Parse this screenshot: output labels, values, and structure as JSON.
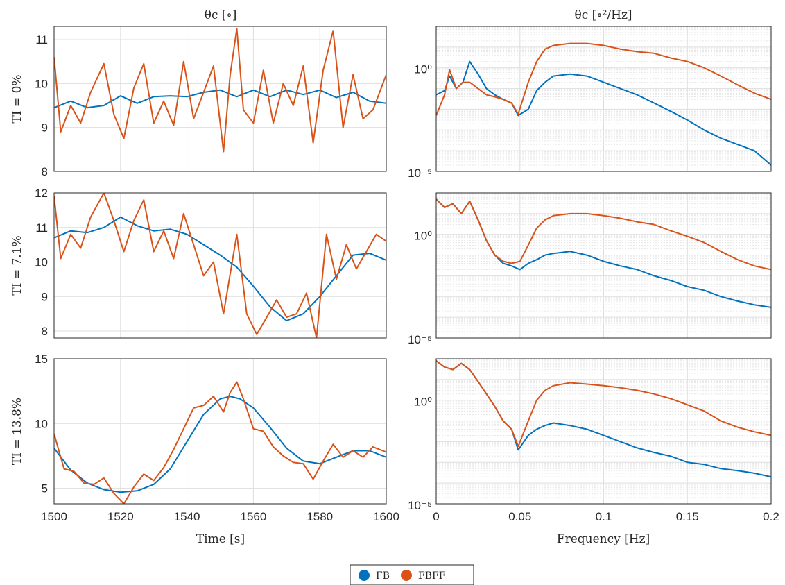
{
  "legend": {
    "entries": [
      {
        "label": "FB",
        "color": "#0072BD"
      },
      {
        "label": "FBFF",
        "color": "#D95319"
      }
    ]
  },
  "columns": {
    "left_title": "θc [∘]",
    "right_title": "θc [∘²/Hz]",
    "left_xlabel": "Time [s]",
    "right_xlabel": "Frequency [Hz]"
  },
  "chart_data": [
    {
      "type": "line",
      "ylabel": "TI = 0%",
      "xlim": [
        1500,
        1600
      ],
      "ylim": [
        8,
        11.3
      ],
      "xticks": [
        1500,
        1520,
        1540,
        1560,
        1580,
        1600
      ],
      "yticks": [
        8,
        9,
        10,
        11
      ],
      "series": [
        {
          "name": "FB",
          "color": "#0072BD",
          "x": [
            1500,
            1505,
            1510,
            1515,
            1520,
            1525,
            1530,
            1535,
            1540,
            1545,
            1550,
            1555,
            1560,
            1565,
            1570,
            1575,
            1580,
            1585,
            1590,
            1595,
            1600
          ],
          "y": [
            9.45,
            9.6,
            9.45,
            9.5,
            9.72,
            9.55,
            9.7,
            9.72,
            9.7,
            9.8,
            9.85,
            9.7,
            9.85,
            9.7,
            9.85,
            9.75,
            9.85,
            9.68,
            9.8,
            9.6,
            9.55
          ]
        },
        {
          "name": "FBFF",
          "color": "#D95319",
          "x": [
            1500,
            1502,
            1505,
            1508,
            1511,
            1515,
            1518,
            1521,
            1524,
            1527,
            1530,
            1533,
            1536,
            1539,
            1542,
            1545,
            1548,
            1551,
            1553,
            1555,
            1557,
            1560,
            1563,
            1566,
            1569,
            1572,
            1575,
            1578,
            1581,
            1584,
            1587,
            1590,
            1593,
            1596,
            1600
          ],
          "y": [
            10.6,
            8.9,
            9.5,
            9.1,
            9.8,
            10.45,
            9.3,
            8.75,
            9.9,
            10.45,
            9.1,
            9.6,
            9.05,
            10.5,
            9.2,
            9.8,
            10.4,
            8.45,
            10.2,
            11.25,
            9.4,
            9.1,
            10.3,
            9.1,
            10.0,
            9.5,
            10.4,
            8.65,
            10.3,
            11.2,
            9.0,
            10.2,
            9.2,
            9.4,
            10.2
          ]
        }
      ]
    },
    {
      "type": "line",
      "xlim": [
        0,
        0.2
      ],
      "yscale": "log",
      "ylim": [
        1e-05,
        100
      ],
      "xticks": [
        0,
        0.05,
        0.1,
        0.15,
        0.2
      ],
      "ytick_labels": [
        "10⁰",
        "10⁻⁵"
      ],
      "series": [
        {
          "name": "FB",
          "color": "#0072BD",
          "x": [
            0,
            0.005,
            0.008,
            0.012,
            0.016,
            0.02,
            0.025,
            0.03,
            0.035,
            0.04,
            0.045,
            0.049,
            0.055,
            0.06,
            0.065,
            0.07,
            0.08,
            0.09,
            0.1,
            0.11,
            0.12,
            0.13,
            0.14,
            0.15,
            0.16,
            0.17,
            0.18,
            0.19,
            0.2
          ],
          "y": [
            0.05,
            0.08,
            0.4,
            0.1,
            0.2,
            2.0,
            0.5,
            0.1,
            0.05,
            0.03,
            0.02,
            0.005,
            0.01,
            0.08,
            0.2,
            0.4,
            0.5,
            0.4,
            0.2,
            0.1,
            0.05,
            0.02,
            0.008,
            0.003,
            0.001,
            0.0004,
            0.0002,
            0.0001,
            2e-05
          ]
        },
        {
          "name": "FBFF",
          "color": "#D95319",
          "x": [
            0,
            0.005,
            0.008,
            0.012,
            0.016,
            0.02,
            0.025,
            0.03,
            0.035,
            0.04,
            0.045,
            0.049,
            0.055,
            0.06,
            0.065,
            0.07,
            0.08,
            0.09,
            0.1,
            0.11,
            0.12,
            0.13,
            0.14,
            0.15,
            0.16,
            0.17,
            0.18,
            0.19,
            0.2
          ],
          "y": [
            0.005,
            0.05,
            0.8,
            0.1,
            0.2,
            0.2,
            0.1,
            0.05,
            0.04,
            0.03,
            0.02,
            0.006,
            0.2,
            2.0,
            8.0,
            12.0,
            15.0,
            15.0,
            12.0,
            8.0,
            6.0,
            5.0,
            3.0,
            2.0,
            1.0,
            0.4,
            0.15,
            0.06,
            0.03
          ]
        }
      ]
    },
    {
      "type": "line",
      "ylabel": "TI = 7.1%",
      "xlim": [
        1500,
        1600
      ],
      "ylim": [
        7.8,
        12
      ],
      "xticks": [
        1500,
        1520,
        1540,
        1560,
        1580,
        1600
      ],
      "yticks": [
        8,
        9,
        10,
        11,
        12
      ],
      "series": [
        {
          "name": "FB",
          "color": "#0072BD",
          "x": [
            1500,
            1505,
            1510,
            1515,
            1520,
            1525,
            1530,
            1535,
            1540,
            1545,
            1550,
            1555,
            1560,
            1565,
            1570,
            1575,
            1580,
            1585,
            1590,
            1595,
            1600
          ],
          "y": [
            10.7,
            10.9,
            10.85,
            11.0,
            11.3,
            11.05,
            10.9,
            10.95,
            10.8,
            10.5,
            10.2,
            9.85,
            9.3,
            8.7,
            8.3,
            8.5,
            9.0,
            9.6,
            10.2,
            10.25,
            10.05
          ]
        },
        {
          "name": "FBFF",
          "color": "#D95319",
          "x": [
            1500,
            1502,
            1505,
            1508,
            1511,
            1515,
            1518,
            1521,
            1524,
            1527,
            1530,
            1533,
            1536,
            1539,
            1542,
            1545,
            1548,
            1551,
            1555,
            1558,
            1561,
            1564,
            1567,
            1570,
            1573,
            1576,
            1579,
            1582,
            1585,
            1588,
            1591,
            1594,
            1597,
            1600
          ],
          "y": [
            11.9,
            10.1,
            10.8,
            10.4,
            11.3,
            12.0,
            11.2,
            10.3,
            11.2,
            11.8,
            10.3,
            10.9,
            10.1,
            11.4,
            10.5,
            9.6,
            10.0,
            8.5,
            10.8,
            8.5,
            7.9,
            8.4,
            8.9,
            8.4,
            8.5,
            9.1,
            7.8,
            10.8,
            9.5,
            10.5,
            9.8,
            10.3,
            10.8,
            10.6
          ]
        }
      ]
    },
    {
      "type": "line",
      "xlim": [
        0,
        0.2
      ],
      "yscale": "log",
      "ylim": [
        1e-05,
        100
      ],
      "xticks": [
        0,
        0.05,
        0.1,
        0.15,
        0.2
      ],
      "ytick_labels": [
        "10⁰",
        "10⁻⁵"
      ],
      "series": [
        {
          "name": "FB",
          "color": "#0072BD",
          "x": [
            0,
            0.005,
            0.01,
            0.015,
            0.02,
            0.025,
            0.03,
            0.035,
            0.04,
            0.045,
            0.05,
            0.055,
            0.06,
            0.065,
            0.07,
            0.08,
            0.09,
            0.1,
            0.11,
            0.12,
            0.13,
            0.14,
            0.15,
            0.16,
            0.17,
            0.18,
            0.19,
            0.2
          ],
          "y": [
            50,
            20,
            30,
            10,
            40,
            5,
            0.5,
            0.1,
            0.04,
            0.03,
            0.02,
            0.04,
            0.06,
            0.1,
            0.12,
            0.15,
            0.1,
            0.05,
            0.03,
            0.02,
            0.01,
            0.006,
            0.003,
            0.002,
            0.001,
            0.0006,
            0.0004,
            0.0003
          ]
        },
        {
          "name": "FBFF",
          "color": "#D95319",
          "x": [
            0,
            0.005,
            0.01,
            0.015,
            0.02,
            0.025,
            0.03,
            0.035,
            0.04,
            0.045,
            0.05,
            0.055,
            0.06,
            0.065,
            0.07,
            0.08,
            0.09,
            0.1,
            0.11,
            0.12,
            0.13,
            0.14,
            0.15,
            0.16,
            0.17,
            0.18,
            0.19,
            0.2
          ],
          "y": [
            50,
            20,
            30,
            10,
            40,
            5,
            0.5,
            0.1,
            0.05,
            0.04,
            0.05,
            0.3,
            2.0,
            5.0,
            8.0,
            10.0,
            10.0,
            8.0,
            6.0,
            4.0,
            3.0,
            1.5,
            0.8,
            0.4,
            0.15,
            0.06,
            0.03,
            0.02
          ]
        }
      ]
    },
    {
      "type": "line",
      "ylabel": "TI = 13.8%",
      "xlim": [
        1500,
        1600
      ],
      "ylim": [
        3.8,
        15
      ],
      "xticks": [
        1500,
        1520,
        1540,
        1560,
        1580,
        1600
      ],
      "yticks": [
        5,
        10,
        15
      ],
      "series": [
        {
          "name": "FB",
          "color": "#0072BD",
          "x": [
            1500,
            1505,
            1510,
            1515,
            1520,
            1525,
            1530,
            1535,
            1540,
            1545,
            1550,
            1553,
            1556,
            1560,
            1565,
            1570,
            1575,
            1580,
            1585,
            1590,
            1595,
            1600
          ],
          "y": [
            8.1,
            6.4,
            5.4,
            4.9,
            4.7,
            4.8,
            5.3,
            6.5,
            8.6,
            10.7,
            11.9,
            12.1,
            11.9,
            11.2,
            9.7,
            8.1,
            7.1,
            6.9,
            7.4,
            7.9,
            7.9,
            7.4
          ]
        },
        {
          "name": "FBFF",
          "color": "#D95319",
          "x": [
            1500,
            1503,
            1506,
            1509,
            1512,
            1515,
            1518,
            1521,
            1524,
            1527,
            1530,
            1533,
            1536,
            1539,
            1542,
            1545,
            1548,
            1551,
            1553,
            1555,
            1557,
            1560,
            1563,
            1566,
            1569,
            1572,
            1575,
            1578,
            1581,
            1584,
            1587,
            1590,
            1593,
            1596,
            1600
          ],
          "y": [
            9.2,
            6.5,
            6.3,
            5.4,
            5.3,
            5.8,
            4.6,
            3.8,
            5.1,
            6.1,
            5.6,
            6.6,
            8.0,
            9.6,
            11.2,
            11.4,
            12.1,
            10.9,
            12.4,
            13.2,
            11.9,
            9.6,
            9.4,
            8.2,
            7.5,
            7.0,
            6.9,
            5.7,
            7.1,
            8.4,
            7.4,
            7.9,
            7.4,
            8.2,
            7.8
          ]
        }
      ]
    },
    {
      "type": "line",
      "xlim": [
        0,
        0.2
      ],
      "yscale": "log",
      "ylim": [
        1e-05,
        100
      ],
      "xticks": [
        0,
        0.05,
        0.1,
        0.15,
        0.2
      ],
      "ytick_labels": [
        "10⁰",
        "10⁻⁵"
      ],
      "series": [
        {
          "name": "FB",
          "color": "#0072BD",
          "x": [
            0,
            0.005,
            0.01,
            0.015,
            0.02,
            0.025,
            0.03,
            0.035,
            0.04,
            0.045,
            0.049,
            0.055,
            0.06,
            0.065,
            0.07,
            0.08,
            0.09,
            0.1,
            0.11,
            0.12,
            0.13,
            0.14,
            0.15,
            0.16,
            0.17,
            0.18,
            0.19,
            0.2
          ],
          "y": [
            80,
            40,
            30,
            60,
            30,
            8,
            2.0,
            0.5,
            0.1,
            0.04,
            0.004,
            0.02,
            0.04,
            0.06,
            0.08,
            0.06,
            0.04,
            0.02,
            0.01,
            0.005,
            0.003,
            0.002,
            0.001,
            0.0008,
            0.0005,
            0.0004,
            0.0003,
            0.0002
          ]
        },
        {
          "name": "FBFF",
          "color": "#D95319",
          "x": [
            0,
            0.005,
            0.01,
            0.015,
            0.02,
            0.025,
            0.03,
            0.035,
            0.04,
            0.045,
            0.049,
            0.055,
            0.06,
            0.065,
            0.07,
            0.08,
            0.09,
            0.1,
            0.11,
            0.12,
            0.13,
            0.14,
            0.15,
            0.16,
            0.17,
            0.18,
            0.19,
            0.2
          ],
          "y": [
            80,
            40,
            30,
            60,
            30,
            8,
            2.0,
            0.5,
            0.1,
            0.04,
            0.006,
            0.1,
            1.0,
            3.0,
            5.0,
            7.0,
            6.0,
            5.0,
            4.0,
            3.0,
            2.0,
            1.2,
            0.6,
            0.3,
            0.1,
            0.05,
            0.03,
            0.02
          ]
        }
      ]
    }
  ]
}
